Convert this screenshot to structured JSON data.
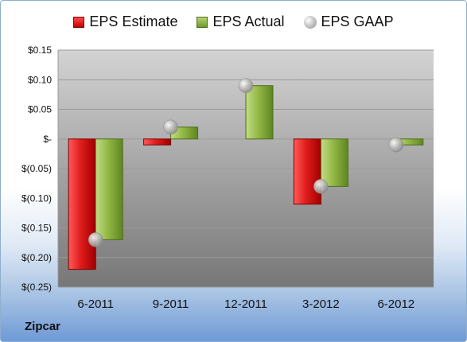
{
  "legend": {
    "estimate": "EPS Estimate",
    "actual": "EPS Actual",
    "gaap": "EPS GAAP"
  },
  "company": "Zipcar",
  "colors": {
    "estimate": "#d01818",
    "actual": "#86ab3c",
    "gaap": "#b4b4b4",
    "plot_top": "#cfcfcf",
    "plot_bottom": "#7a7a7a"
  },
  "chart_data": {
    "type": "bar",
    "categories": [
      "6-2011",
      "9-2011",
      "12-2011",
      "3-2012",
      "6-2012"
    ],
    "series": [
      {
        "name": "EPS Estimate",
        "values": [
          -0.22,
          -0.01,
          null,
          -0.11,
          null
        ]
      },
      {
        "name": "EPS Actual",
        "values": [
          -0.17,
          0.02,
          0.09,
          -0.08,
          -0.01
        ]
      },
      {
        "name": "EPS GAAP",
        "values": [
          -0.17,
          0.02,
          0.09,
          -0.08,
          -0.01
        ]
      }
    ],
    "ylim": [
      -0.25,
      0.15
    ],
    "yticks": [
      0.15,
      0.1,
      0.05,
      0,
      -0.05,
      -0.1,
      -0.15,
      -0.2,
      -0.25
    ],
    "ytick_labels": [
      "$0.15",
      "$0.10",
      "$0.05",
      "$-",
      "$(0.05)",
      "$(0.10)",
      "$(0.15)",
      "$(0.20)",
      "$(0.25)"
    ],
    "grid": true,
    "legend_position": "top"
  }
}
